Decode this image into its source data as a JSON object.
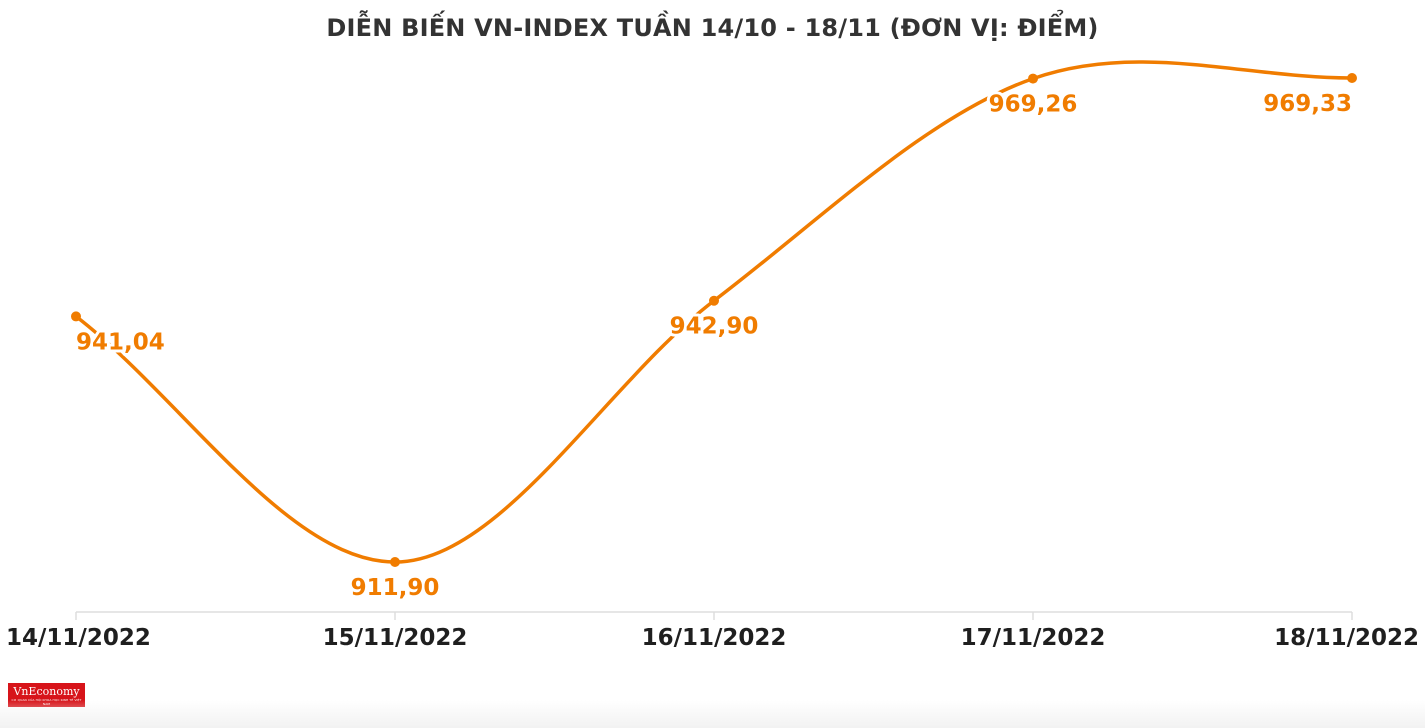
{
  "chart_data": {
    "type": "line",
    "title": "DIỄN BIẾN VN-INDEX TUẦN 14/10 - 18/11 (ĐƠN VỊ: ĐIỂM)",
    "categories": [
      "14/11/2022",
      "15/11/2022",
      "16/11/2022",
      "17/11/2022",
      "18/11/2022"
    ],
    "series": [
      {
        "values": [
          941.04,
          911.9,
          942.9,
          969.26,
          969.33
        ],
        "labels": [
          "941,04",
          "911,90",
          "942,90",
          "969,26",
          "969,33"
        ]
      }
    ],
    "xlabel": "",
    "ylabel": "",
    "ylim": [
      911.9,
      969.33
    ],
    "grid": false,
    "legend": "none",
    "line_color": "#f07c00",
    "label_color": "#f07c00",
    "axis_color": "#dddddd"
  },
  "branding": {
    "logo_text": "VnEconomy",
    "logo_tagline": "CƠ QUAN CỦA HỘI KHOA HỌC KINH TẾ VIỆT NAM",
    "logo_color": "#d7141a"
  }
}
